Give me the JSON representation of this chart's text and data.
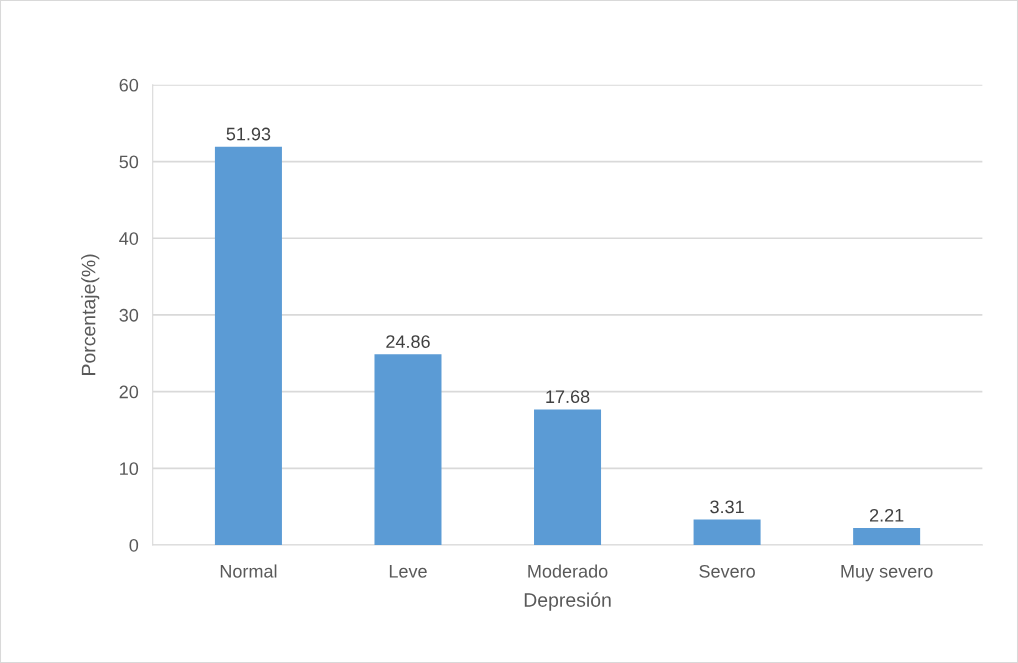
{
  "chart_data": {
    "type": "bar",
    "xlabel": "Depresión",
    "ylabel": "Porcentaje(%)",
    "categories": [
      "Normal",
      "Leve",
      "Moderado",
      "Severo",
      "Muy severo"
    ],
    "values": [
      51.93,
      24.86,
      17.68,
      3.31,
      2.21
    ],
    "color": "#5b9bd5",
    "ylim": [
      0,
      60
    ],
    "yticks": [
      0,
      10,
      20,
      30,
      40,
      50,
      60
    ],
    "grid": "y",
    "data_labels": true
  }
}
